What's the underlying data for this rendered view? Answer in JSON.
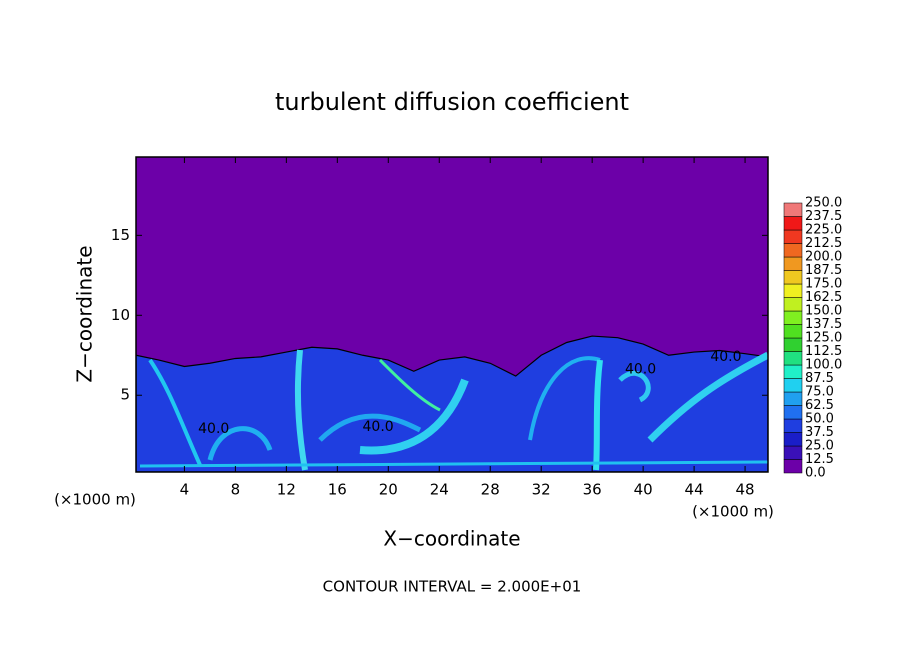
{
  "chart_data": {
    "type": "contour",
    "title": "turbulent diffusion coefficient",
    "xlabel": "X−coordinate",
    "ylabel": "Z−coordinate",
    "xunit_left": "(×1000 m)",
    "xunit_right": "(×1000 m)",
    "footer": "CONTOUR INTERVAL = 2.000E+01",
    "xlim": [
      0.2,
      49.8
    ],
    "ylim": [
      0.2,
      19.9
    ],
    "xticks": [
      4,
      8,
      12,
      16,
      20,
      24,
      28,
      32,
      36,
      40,
      44,
      48
    ],
    "yticks": [
      5,
      10,
      15
    ],
    "background_color": "#6c00a8",
    "layer": {
      "color": "#1f3ee0",
      "x": [
        0.2,
        2,
        4,
        6,
        8,
        10,
        12,
        14,
        16,
        18,
        20,
        22,
        24,
        26,
        28,
        30,
        32,
        34,
        36,
        38,
        40,
        42,
        44,
        46,
        48,
        49.8
      ],
      "z": [
        7.5,
        7.2,
        6.8,
        7.0,
        7.3,
        7.4,
        7.7,
        8.0,
        7.9,
        7.5,
        7.2,
        6.5,
        7.2,
        7.4,
        7.0,
        6.2,
        7.5,
        8.3,
        8.7,
        8.6,
        8.2,
        7.5,
        7.7,
        7.8,
        7.6,
        7.4
      ]
    },
    "annotations": [
      {
        "text": "40.0",
        "x": 6.3,
        "y": 2.9
      },
      {
        "text": "40.0",
        "x": 19.2,
        "y": 3.0
      },
      {
        "text": "40.0",
        "x": 39.8,
        "y": 6.6
      },
      {
        "text": "40.0",
        "x": 46.5,
        "y": 7.4
      }
    ],
    "colorbar": {
      "levels": [
        {
          "value": 0,
          "label": "0.0"
        },
        {
          "value": 12.5,
          "label": "12.5"
        },
        {
          "value": 25,
          "label": "25.0"
        },
        {
          "value": 37.5,
          "label": "37.5"
        },
        {
          "value": 50,
          "label": "50.0"
        },
        {
          "value": 62.5,
          "label": "62.5"
        },
        {
          "value": 75,
          "label": "75.0"
        },
        {
          "value": 87.5,
          "label": "87.5"
        },
        {
          "value": 100,
          "label": "100.0"
        },
        {
          "value": 112.5,
          "label": "112.5"
        },
        {
          "value": 125,
          "label": "125.0"
        },
        {
          "value": 137.5,
          "label": "137.5"
        },
        {
          "value": 150,
          "label": "150.0"
        },
        {
          "value": 162.5,
          "label": "162.5"
        },
        {
          "value": 175,
          "label": "175.0"
        },
        {
          "value": 187.5,
          "label": "187.5"
        },
        {
          "value": 200,
          "label": "200.0"
        },
        {
          "value": 212.5,
          "label": "212.5"
        },
        {
          "value": 225,
          "label": "225.0"
        },
        {
          "value": 237.5,
          "label": "237.5"
        },
        {
          "value": 250,
          "label": "250.0"
        }
      ],
      "colors": [
        "#6c00a8",
        "#3a10b8",
        "#1a1ec8",
        "#1f3ee0",
        "#2070f0",
        "#20a0f0",
        "#20d0f0",
        "#20f0c8",
        "#20e080",
        "#30d030",
        "#50e020",
        "#80f020",
        "#c0f020",
        "#f0f020",
        "#f0c820",
        "#f09820",
        "#f06820",
        "#f03820",
        "#f01818",
        "#f07878"
      ]
    }
  }
}
